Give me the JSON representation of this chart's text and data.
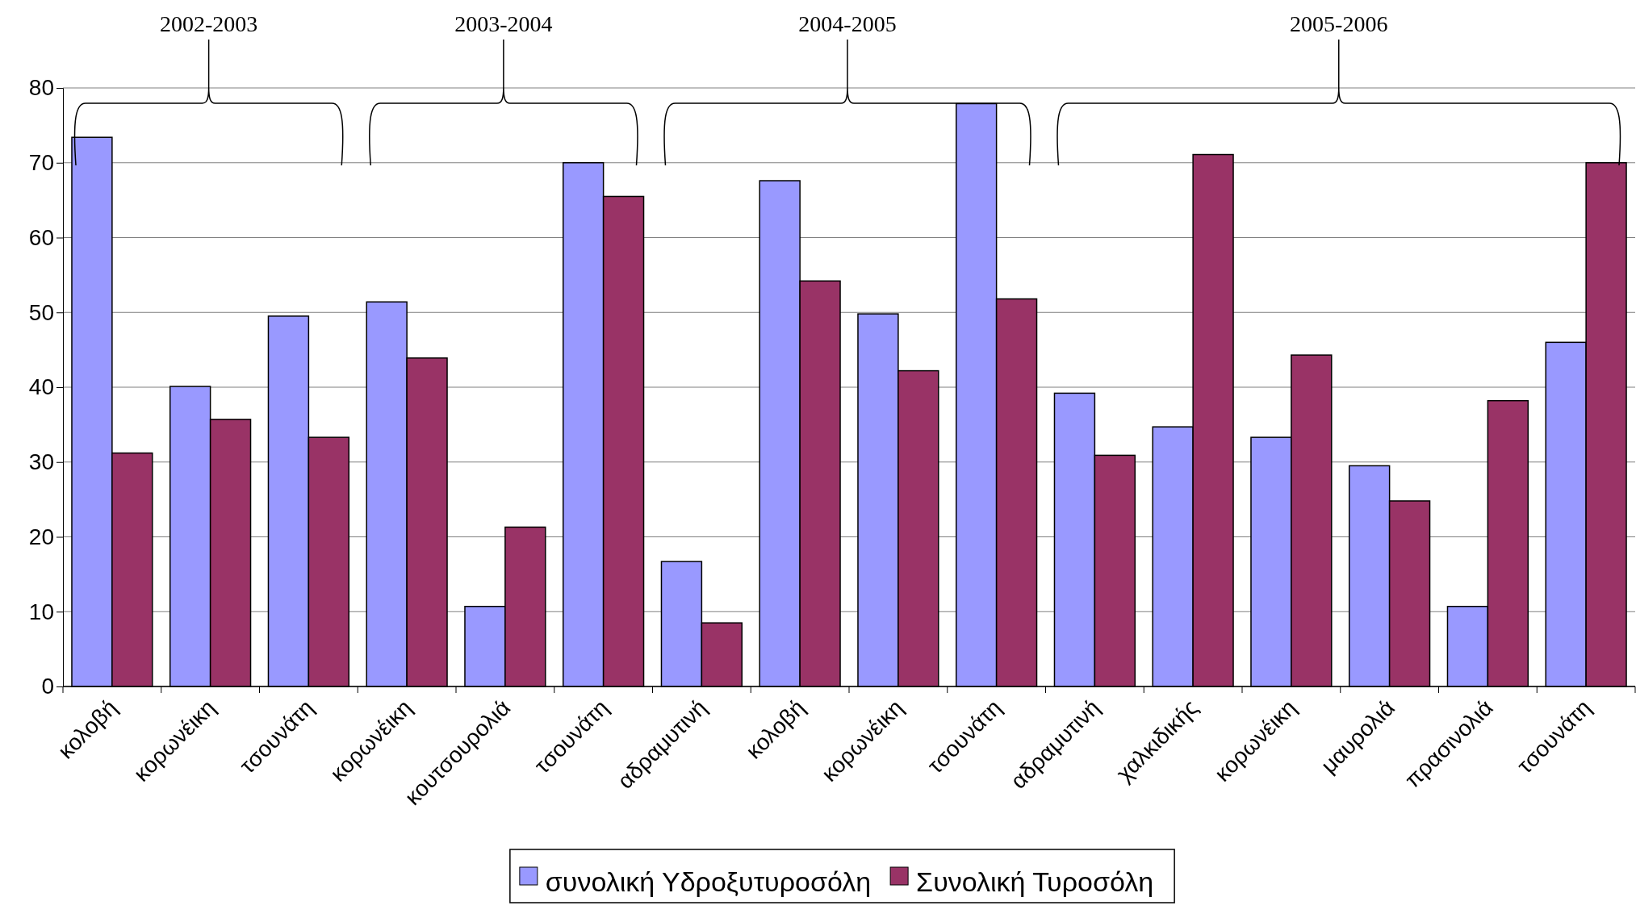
{
  "chart_data": {
    "type": "bar",
    "categories": [
      "κολοβή",
      "κορωνέικη",
      "τσουνάτη",
      "κορωνέικη",
      "κουτσουρολιά",
      "τσουνάτη",
      "αδραμυτινή",
      "κολοβή",
      "κορωνέικη",
      "τσουνάτη",
      "αδραμυτινή",
      "χαλκιδικής",
      "κορωνέικη",
      "μαυρολιά",
      "πρασινολιά",
      "τσουνάτη"
    ],
    "series": [
      {
        "name": "συνολική Υδροξυτυροσόλη",
        "color": "#9999ff",
        "values": [
          73.4,
          40.1,
          49.5,
          51.4,
          10.7,
          70.0,
          16.7,
          67.6,
          49.8,
          77.9,
          39.2,
          34.7,
          33.3,
          29.5,
          10.7,
          46.0
        ]
      },
      {
        "name": "Συνολική Τυροσόλη",
        "color": "#993366",
        "values": [
          31.2,
          35.7,
          33.3,
          43.9,
          21.3,
          65.5,
          8.5,
          54.2,
          42.2,
          51.8,
          30.9,
          71.1,
          44.3,
          24.8,
          38.2,
          70.0
        ]
      }
    ],
    "ylim": [
      0,
      80
    ],
    "yticks": [
      0,
      10,
      20,
      30,
      40,
      50,
      60,
      70,
      80
    ],
    "grid": "y",
    "legend": "bottom",
    "annotations": [
      "2002-2003",
      "2003-2004",
      "2004-2005",
      "2005-2006"
    ]
  }
}
